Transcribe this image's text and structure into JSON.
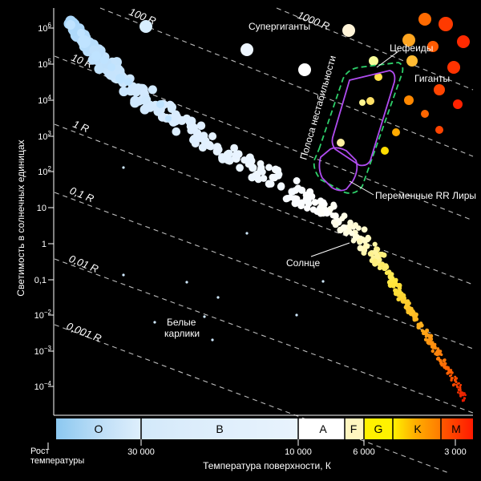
{
  "chart_data": {
    "type": "scatter",
    "title": "",
    "ylabel": "Светимость в солнечных единицах",
    "xlabel": "Температура поверхности, К",
    "x_direction_label": "Рост температуры",
    "x_scale": "log-reversed",
    "y_scale": "log",
    "y_ticks": [
      {
        "base": "10",
        "exp": "6"
      },
      {
        "base": "10",
        "exp": "5"
      },
      {
        "base": "10",
        "exp": "4"
      },
      {
        "base": "10",
        "exp": "3"
      },
      {
        "base": "10",
        "exp": "2"
      },
      {
        "base": "10",
        "exp": ""
      },
      {
        "base": "1",
        "exp": ""
      },
      {
        "base": "0,1",
        "exp": ""
      },
      {
        "base": "10",
        "exp": "−2"
      },
      {
        "base": "10",
        "exp": "−3"
      },
      {
        "base": "10",
        "exp": "−4"
      }
    ],
    "x_ticks": [
      "30 000",
      "10 000",
      "6 000",
      "3 000"
    ],
    "spectral_classes": [
      {
        "name": "O",
        "color": "#8cc8f0"
      },
      {
        "name": "B",
        "color": "#d8ecfb"
      },
      {
        "name": "A",
        "color": "#ffffff"
      },
      {
        "name": "F",
        "color": "#fffbd0"
      },
      {
        "name": "G",
        "color": "#fff200"
      },
      {
        "name": "K",
        "color": "#ff9900"
      },
      {
        "name": "M",
        "color": "#ff2200"
      }
    ],
    "radius_lines": [
      "1000 R",
      "100 R",
      "10 R",
      "1 R",
      "0,1 R",
      "0,01 R",
      "0,001 R"
    ],
    "annotations": {
      "supergiants": "Супергиганты",
      "cepheids": "Цефеиды",
      "giants": "Гиганты",
      "instability_strip": "Полоса нестабильности",
      "rr_lyrae": "Переменные RR Лиры",
      "sun": "Солнце",
      "white_dwarfs_line1": "Белые",
      "white_dwarfs_line2": "карлики"
    },
    "colors": {
      "main_sequence_hot": "#bfe3ff",
      "main_sequence_mid": "#ffffff",
      "main_sequence_cool": "#ff2a00",
      "instability_outline": "#2ed06a",
      "cepheid_outline": "#b04cf0",
      "radius_lines": "#bbbbbb"
    }
  }
}
